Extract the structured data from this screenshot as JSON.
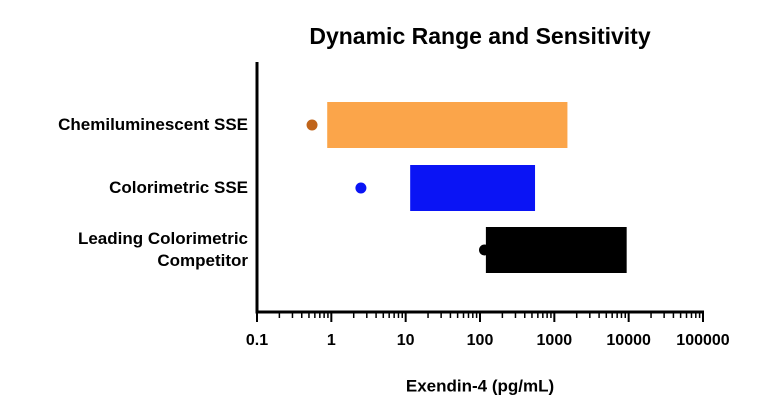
{
  "chart_data": {
    "type": "range-bar",
    "title": "Dynamic Range and Sensitivity",
    "x_label": "Exendin-4 (pg/mL)",
    "categories": [
      "Chemiluminescent SSE",
      "Colorimetric SSE",
      "Leading Colorimetric Competitor"
    ],
    "range_low": [
      0.88,
      11.5,
      120
    ],
    "range_high": [
      1500,
      550,
      9400
    ],
    "sensitivity": [
      0.55,
      2.5,
      115
    ],
    "bar_colors": [
      "#fba54a",
      "#0a14f5",
      "#000000"
    ],
    "dot_colors": [
      "#c0641a",
      "#0a14f5",
      "#000000"
    ],
    "xscale": "log",
    "xlim": [
      0.1,
      100000
    ],
    "xticks": [
      0.1,
      1,
      10,
      100,
      1000,
      10000,
      100000
    ],
    "minor_ticks": true
  }
}
